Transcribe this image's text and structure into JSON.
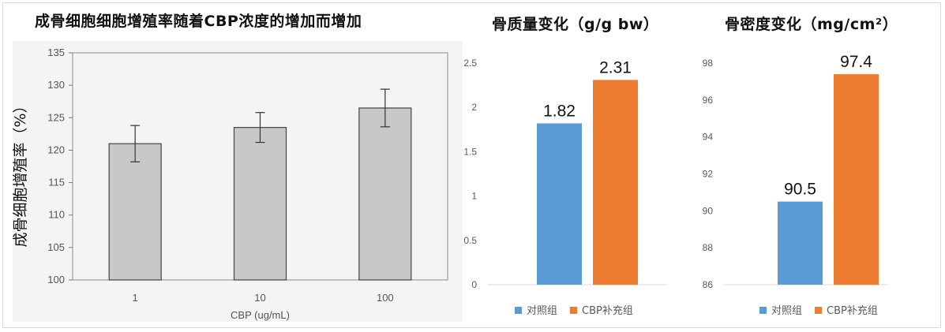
{
  "titles": {
    "chart1": "成骨细胞细胞增殖率随着CBP浓度的增加而增加",
    "chart2": "骨质量变化（g/g bw）",
    "chart3": "骨密度变化（mg/cm²）"
  },
  "colors": {
    "control": "#5B9BD5",
    "cbp": "#ED7D31",
    "scan_bar": "#c8c8c8",
    "scan_bg": "#f4f4f2"
  },
  "chart_data": [
    {
      "type": "bar",
      "title": "",
      "xlabel": "CBP (ug/mL)",
      "ylabel": "成骨细胞增殖率（%）",
      "categories": [
        "1",
        "10",
        "100"
      ],
      "values": [
        121,
        123.5,
        126.5
      ],
      "errors": [
        2.8,
        2.3,
        2.9
      ],
      "ylim": [
        100,
        135
      ],
      "yticks": [
        "100",
        "105",
        "110",
        "115",
        "120",
        "125",
        "130",
        "135"
      ],
      "grid": false
    },
    {
      "type": "bar",
      "title": "骨质量变化（g/g bw）",
      "categories": [
        "对照组",
        "CBP补充组"
      ],
      "values": [
        1.82,
        2.31
      ],
      "data_labels": [
        "1.82",
        "2.31"
      ],
      "ylim": [
        0,
        2.5
      ],
      "yticks": [
        "0",
        "0.5",
        "1",
        "1.5",
        "2",
        "2.5"
      ],
      "legend": [
        "对照组",
        "CBP补充组"
      ],
      "legend_position": "bottom",
      "grid": false
    },
    {
      "type": "bar",
      "title": "骨密度变化（mg/cm²）",
      "categories": [
        "对照组",
        "CBP补充组"
      ],
      "values": [
        90.5,
        97.4
      ],
      "data_labels": [
        "90.5",
        "97.4"
      ],
      "ylim": [
        86,
        98
      ],
      "yticks": [
        "86",
        "88",
        "90",
        "92",
        "94",
        "96",
        "98"
      ],
      "legend": [
        "对照组",
        "CBP补充组"
      ],
      "legend_position": "bottom",
      "grid": false
    }
  ]
}
